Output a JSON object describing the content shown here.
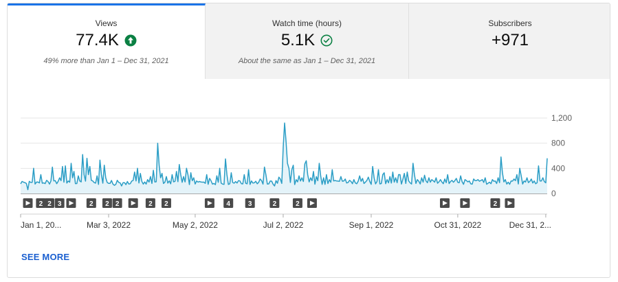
{
  "tabs": [
    {
      "label": "Views",
      "value": "77.4K",
      "note": "49% more than Jan 1 – Dec 31, 2021",
      "status_icon": "arrow-up-circle-icon",
      "status_color": "#0b8043"
    },
    {
      "label": "Watch time (hours)",
      "value": "5.1K",
      "note": "About the same as Jan 1 – Dec 31, 2021",
      "status_icon": "check-circle-icon",
      "status_color": "#0b8043"
    },
    {
      "label": "Subscribers",
      "value": "+971",
      "note": ""
    }
  ],
  "see_more": "SEE MORE",
  "chart_data": {
    "type": "area",
    "series_color": "#2a9dc5",
    "fill_color": "#e4f3f9",
    "ylim": [
      0,
      1200
    ],
    "yticks": [
      "1,200",
      "800",
      "400",
      "0"
    ],
    "ytick_values": [
      1200,
      800,
      400,
      0
    ],
    "xticks": [
      "Jan 1, 20...",
      "Mar 3, 2022",
      "May 2, 2022",
      "Jul 2, 2022",
      "Sep 1, 2022",
      "Oct 31, 2022",
      "Dec 31, 2..."
    ],
    "xtick_days": [
      0,
      61,
      121,
      182,
      243,
      303,
      364
    ],
    "spikes": [
      [
        5,
        60
      ],
      [
        9,
        400
      ],
      [
        10,
        150
      ],
      [
        14,
        300
      ],
      [
        20,
        150
      ],
      [
        22,
        420
      ],
      [
        23,
        200
      ],
      [
        27,
        250
      ],
      [
        29,
        430
      ],
      [
        30,
        180
      ],
      [
        31,
        440
      ],
      [
        33,
        200
      ],
      [
        35,
        480
      ],
      [
        36,
        250
      ],
      [
        37,
        350
      ],
      [
        40,
        280
      ],
      [
        43,
        620
      ],
      [
        44,
        300
      ],
      [
        46,
        560
      ],
      [
        47,
        300
      ],
      [
        48,
        430
      ],
      [
        50,
        200
      ],
      [
        53,
        280
      ],
      [
        55,
        530
      ],
      [
        56,
        300
      ],
      [
        58,
        450
      ],
      [
        59,
        250
      ],
      [
        62,
        160
      ],
      [
        65,
        130
      ],
      [
        70,
        120
      ],
      [
        75,
        150
      ],
      [
        79,
        340
      ],
      [
        80,
        200
      ],
      [
        81,
        400
      ],
      [
        83,
        320
      ],
      [
        85,
        150
      ],
      [
        88,
        220
      ],
      [
        90,
        270
      ],
      [
        92,
        370
      ],
      [
        95,
        800
      ],
      [
        96,
        450
      ],
      [
        97,
        250
      ],
      [
        98,
        320
      ],
      [
        101,
        270
      ],
      [
        105,
        300
      ],
      [
        108,
        350
      ],
      [
        110,
        460
      ],
      [
        111,
        300
      ],
      [
        113,
        270
      ],
      [
        115,
        400
      ],
      [
        116,
        300
      ],
      [
        118,
        330
      ],
      [
        120,
        250
      ],
      [
        122,
        200
      ],
      [
        126,
        180
      ],
      [
        129,
        300
      ],
      [
        131,
        240
      ],
      [
        133,
        150
      ],
      [
        136,
        280
      ],
      [
        138,
        400
      ],
      [
        140,
        150
      ],
      [
        142,
        550
      ],
      [
        143,
        300
      ],
      [
        146,
        330
      ],
      [
        149,
        190
      ],
      [
        152,
        200
      ],
      [
        155,
        300
      ],
      [
        158,
        380
      ],
      [
        160,
        200
      ],
      [
        162,
        170
      ],
      [
        166,
        230
      ],
      [
        169,
        420
      ],
      [
        170,
        300
      ],
      [
        173,
        200
      ],
      [
        176,
        120
      ],
      [
        179,
        260
      ],
      [
        180,
        230
      ],
      [
        182,
        740
      ],
      [
        183,
        1120
      ],
      [
        184,
        830
      ],
      [
        185,
        480
      ],
      [
        186,
        400
      ],
      [
        188,
        380
      ],
      [
        189,
        450
      ],
      [
        191,
        220
      ],
      [
        193,
        280
      ],
      [
        195,
        250
      ],
      [
        197,
        470
      ],
      [
        198,
        520
      ],
      [
        199,
        300
      ],
      [
        201,
        250
      ],
      [
        203,
        350
      ],
      [
        205,
        270
      ],
      [
        207,
        480
      ],
      [
        208,
        280
      ],
      [
        210,
        250
      ],
      [
        212,
        300
      ],
      [
        214,
        220
      ],
      [
        216,
        380
      ],
      [
        217,
        200
      ],
      [
        219,
        200
      ],
      [
        222,
        270
      ],
      [
        225,
        230
      ],
      [
        228,
        210
      ],
      [
        231,
        220
      ],
      [
        235,
        280
      ],
      [
        237,
        240
      ],
      [
        241,
        260
      ],
      [
        244,
        430
      ],
      [
        245,
        250
      ],
      [
        248,
        380
      ],
      [
        251,
        300
      ],
      [
        252,
        330
      ],
      [
        254,
        220
      ],
      [
        256,
        270
      ],
      [
        258,
        340
      ],
      [
        260,
        250
      ],
      [
        262,
        300
      ],
      [
        263,
        300
      ],
      [
        265,
        230
      ],
      [
        266,
        320
      ],
      [
        268,
        340
      ],
      [
        269,
        200
      ],
      [
        272,
        480
      ],
      [
        273,
        300
      ],
      [
        275,
        220
      ],
      [
        278,
        250
      ],
      [
        280,
        290
      ],
      [
        281,
        200
      ],
      [
        283,
        250
      ],
      [
        285,
        220
      ],
      [
        288,
        250
      ],
      [
        291,
        220
      ],
      [
        294,
        230
      ],
      [
        296,
        300
      ],
      [
        299,
        210
      ],
      [
        302,
        240
      ],
      [
        305,
        280
      ],
      [
        308,
        220
      ],
      [
        311,
        200
      ],
      [
        314,
        230
      ],
      [
        317,
        220
      ],
      [
        320,
        220
      ],
      [
        322,
        250
      ],
      [
        325,
        180
      ],
      [
        327,
        220
      ],
      [
        329,
        200
      ],
      [
        331,
        250
      ],
      [
        333,
        580
      ],
      [
        334,
        330
      ],
      [
        336,
        220
      ],
      [
        338,
        180
      ],
      [
        340,
        200
      ],
      [
        342,
        230
      ],
      [
        344,
        300
      ],
      [
        346,
        400
      ],
      [
        347,
        280
      ],
      [
        349,
        200
      ],
      [
        351,
        250
      ],
      [
        354,
        230
      ],
      [
        356,
        200
      ],
      [
        358,
        170
      ],
      [
        359,
        440
      ],
      [
        360,
        200
      ],
      [
        361,
        200
      ],
      [
        362,
        250
      ],
      [
        363,
        190
      ],
      [
        364,
        170
      ],
      [
        365,
        560
      ]
    ],
    "base_level": 140,
    "markers": [
      {
        "day": 5,
        "kind": "play"
      },
      {
        "day": 14,
        "kind": "count",
        "label": "2"
      },
      {
        "day": 20,
        "kind": "count",
        "label": "2"
      },
      {
        "day": 27,
        "kind": "count",
        "label": "3"
      },
      {
        "day": 35,
        "kind": "play"
      },
      {
        "day": 49,
        "kind": "count",
        "label": "2"
      },
      {
        "day": 60,
        "kind": "count",
        "label": "2"
      },
      {
        "day": 67,
        "kind": "count",
        "label": "2"
      },
      {
        "day": 78,
        "kind": "play"
      },
      {
        "day": 90,
        "kind": "count",
        "label": "2"
      },
      {
        "day": 101,
        "kind": "count",
        "label": "2"
      },
      {
        "day": 131,
        "kind": "play"
      },
      {
        "day": 144,
        "kind": "count",
        "label": "4"
      },
      {
        "day": 159,
        "kind": "count",
        "label": "3"
      },
      {
        "day": 176,
        "kind": "count",
        "label": "2"
      },
      {
        "day": 192,
        "kind": "count",
        "label": "2"
      },
      {
        "day": 202,
        "kind": "play"
      },
      {
        "day": 294,
        "kind": "play"
      },
      {
        "day": 308,
        "kind": "play"
      },
      {
        "day": 329,
        "kind": "count",
        "label": "2"
      },
      {
        "day": 339,
        "kind": "play"
      }
    ]
  }
}
